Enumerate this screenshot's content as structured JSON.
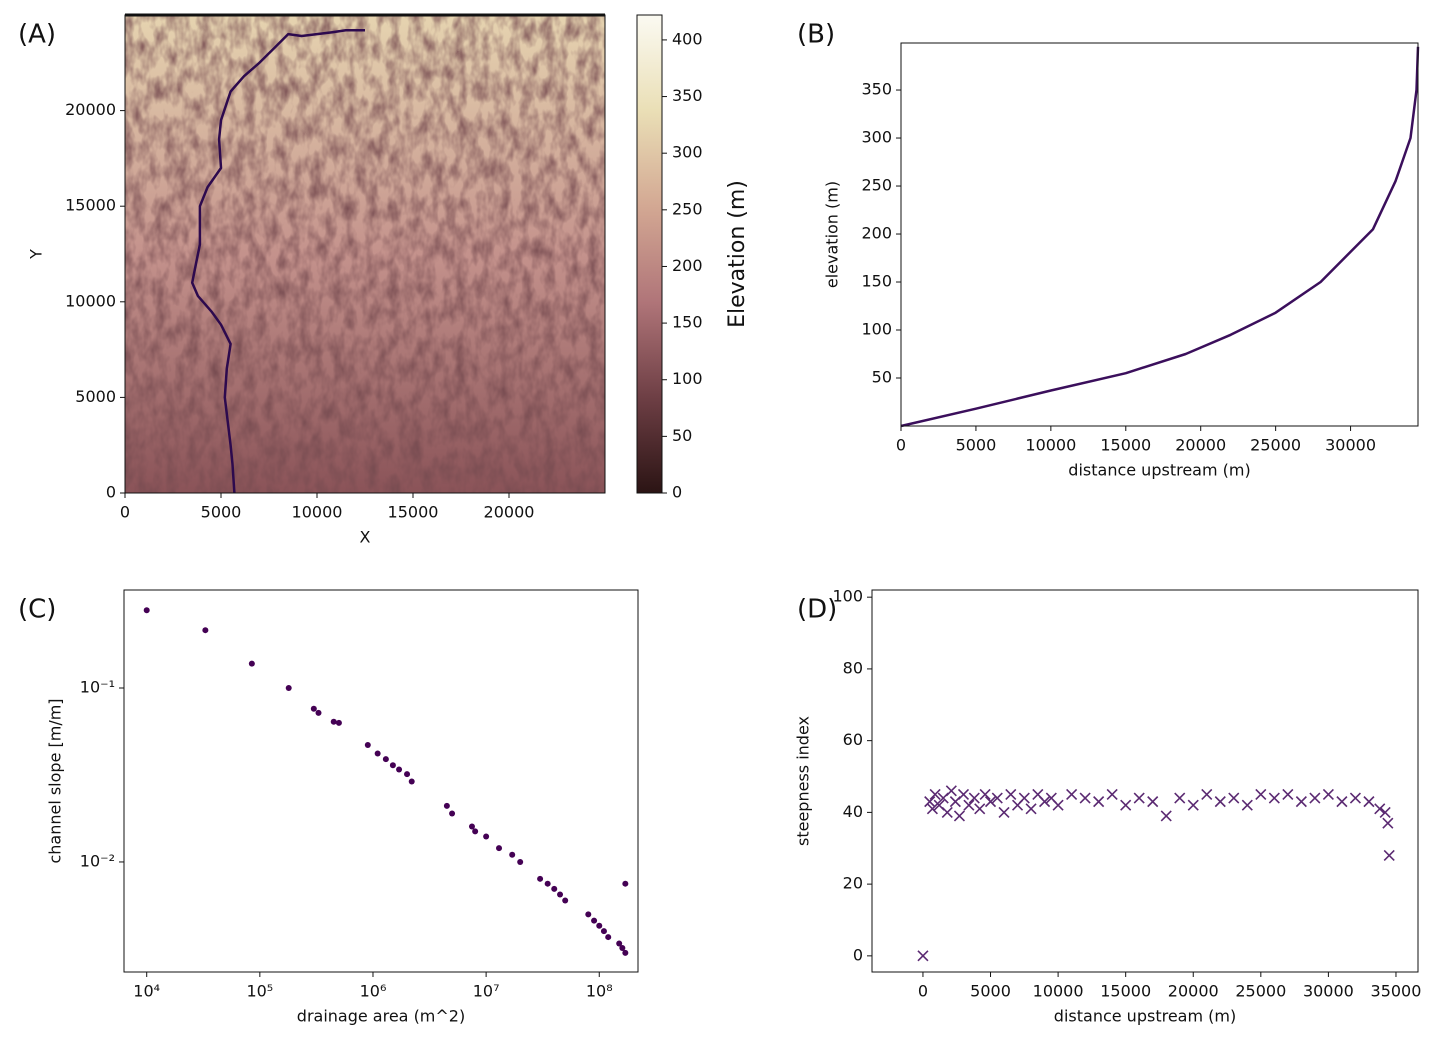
{
  "chart_data": [
    {
      "type": "line",
      "panel_label": "(A)",
      "xlabel": "X",
      "ylabel": "Y",
      "color": "#2d0a4e",
      "x": [
        5700,
        5600,
        5500,
        5200,
        5300,
        5500,
        5000,
        4500,
        3800,
        3500,
        3700,
        3900,
        3900,
        4300,
        5000,
        4900,
        5000,
        5500,
        6200,
        7000,
        7800,
        8500,
        9200,
        10000,
        10800,
        11500,
        12500
      ],
      "values": [
        0,
        1500,
        2500,
        5000,
        6500,
        7800,
        8800,
        9500,
        10300,
        11000,
        12000,
        13000,
        15000,
        16000,
        17000,
        18500,
        19500,
        21000,
        21800,
        22500,
        23300,
        24000,
        23900,
        24000,
        24100,
        24200,
        24200
      ],
      "xlim": [
        0,
        25000
      ],
      "ylim": [
        0,
        25000
      ],
      "xticks": [
        0,
        5000,
        10000,
        15000,
        20000
      ],
      "yticks": [
        0,
        5000,
        10000,
        15000,
        20000
      ],
      "colorbar": {
        "label": "Elevation (m)",
        "lim": [
          0,
          422
        ],
        "ticks": [
          0,
          50,
          100,
          150,
          200,
          250,
          300,
          350,
          400
        ]
      }
    },
    {
      "type": "line",
      "panel_label": "(B)",
      "xlabel": "distance upstream (m)",
      "ylabel": "elevation (m)",
      "color": "#3b0f5c",
      "x": [
        0,
        5000,
        10000,
        15000,
        19000,
        22000,
        25000,
        28000,
        31500,
        33000,
        34000,
        34400,
        34500
      ],
      "values": [
        0,
        18,
        37,
        55,
        75,
        95,
        118,
        150,
        205,
        255,
        300,
        350,
        395
      ],
      "xlim": [
        0,
        34500
      ],
      "ylim": [
        0,
        399
      ],
      "xticks": [
        0,
        5000,
        10000,
        15000,
        20000,
        25000,
        30000
      ],
      "yticks": [
        50,
        100,
        150,
        200,
        250,
        300,
        350
      ]
    },
    {
      "type": "scatter",
      "marker": "dot",
      "panel_label": "(C)",
      "xlabel": "drainage area (m^2)",
      "ylabel": "channel slope [m/m]",
      "color": "#440154",
      "xscale": "log",
      "yscale": "log",
      "x": [
        10000,
        33000,
        85000,
        180000,
        300000,
        330000,
        450000,
        500000,
        900000,
        1100000,
        1300000,
        1500000,
        1700000,
        2000000,
        2200000,
        4500000,
        5000000,
        7500000,
        8000000,
        10000000,
        13000000,
        17000000,
        20000000,
        30000000,
        35000000,
        40000000,
        45000000,
        50000000,
        80000000,
        90000000,
        100000000,
        110000000,
        120000000,
        150000000,
        160000000,
        170000000,
        170000000
      ],
      "values": [
        0.28,
        0.215,
        0.138,
        0.1,
        0.076,
        0.072,
        0.064,
        0.063,
        0.047,
        0.042,
        0.039,
        0.036,
        0.034,
        0.032,
        0.029,
        0.021,
        0.019,
        0.016,
        0.015,
        0.014,
        0.012,
        0.011,
        0.01,
        0.008,
        0.0075,
        0.007,
        0.0065,
        0.006,
        0.005,
        0.0046,
        0.0043,
        0.004,
        0.0037,
        0.0034,
        0.0032,
        0.003,
        0.0075
      ],
      "xlim": [
        6300,
        220000000
      ],
      "ylim": [
        0.00233,
        0.366
      ],
      "xticks": [
        {
          "value": 10000,
          "label": "10⁴"
        },
        {
          "value": 100000,
          "label": "10⁵"
        },
        {
          "value": 1000000,
          "label": "10⁶"
        },
        {
          "value": 10000000,
          "label": "10⁷"
        },
        {
          "value": 100000000,
          "label": "10⁸"
        }
      ],
      "yticks": [
        {
          "value": 0.01,
          "label": "10⁻²"
        },
        {
          "value": 0.1,
          "label": "10⁻¹"
        }
      ]
    },
    {
      "type": "scatter",
      "marker": "x",
      "panel_label": "(D)",
      "xlabel": "distance upstream (m)",
      "ylabel": "steepness index",
      "color": "#5b2a72",
      "x": [
        0,
        500,
        700,
        900,
        1200,
        1500,
        1800,
        2100,
        2400,
        2700,
        3000,
        3400,
        3800,
        4200,
        4600,
        5000,
        5500,
        6000,
        6500,
        7000,
        7500,
        8000,
        8500,
        9000,
        9500,
        10000,
        11000,
        12000,
        13000,
        14000,
        15000,
        16000,
        17000,
        18000,
        19000,
        20000,
        21000,
        22000,
        23000,
        24000,
        25000,
        26000,
        27000,
        28000,
        29000,
        30000,
        31000,
        32000,
        33000,
        33800,
        34200,
        34400,
        34500
      ],
      "values": [
        0,
        43,
        41,
        45,
        42,
        44,
        40,
        46,
        43,
        39,
        45,
        42,
        44,
        41,
        45,
        43,
        44,
        40,
        45,
        42,
        44,
        41,
        45,
        43,
        44,
        42,
        45,
        44,
        43,
        45,
        42,
        44,
        43,
        39,
        44,
        42,
        45,
        43,
        44,
        42,
        45,
        44,
        45,
        43,
        44,
        45,
        43,
        44,
        43,
        41,
        40,
        37,
        28
      ],
      "xlim": [
        -3770,
        36630
      ],
      "ylim": [
        -4.5,
        102
      ],
      "xticks": [
        0,
        5000,
        10000,
        15000,
        20000,
        25000,
        30000,
        35000
      ],
      "yticks": [
        0,
        20,
        40,
        60,
        80,
        100
      ]
    }
  ]
}
